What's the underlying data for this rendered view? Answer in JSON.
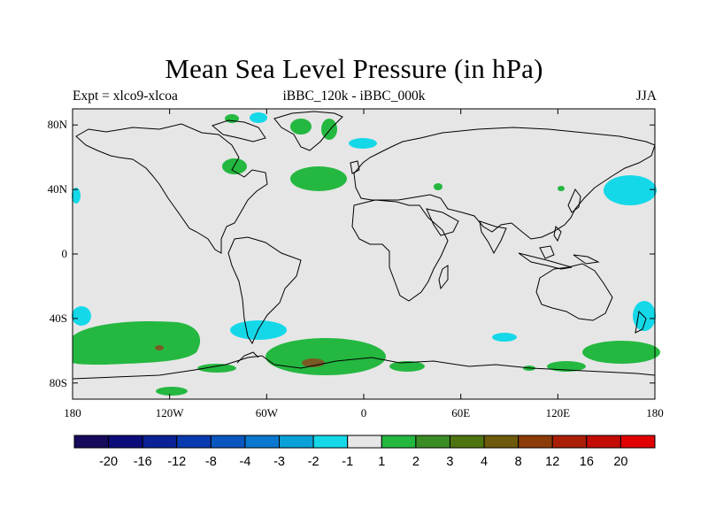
{
  "title": "Mean Sea Level Pressure (in hPa)",
  "expt_label": "Expt = xlco9-xlcoa",
  "diff_label": "iBBC_120k - iBBC_000k",
  "season_label": "JJA",
  "lat_ticks": [
    "80N",
    "40N",
    "0",
    "40S",
    "80S"
  ],
  "lon_ticks": [
    "180",
    "120W",
    "60W",
    "0",
    "60E",
    "120E",
    "180"
  ],
  "colorbar": {
    "labels": [
      "-20",
      "-16",
      "-12",
      "-8",
      "-4",
      "-3",
      "-2",
      "-1",
      "1",
      "2",
      "3",
      "4",
      "8",
      "12",
      "16",
      "20"
    ],
    "colors": [
      "#150a5c",
      "#0c0d7a",
      "#0a2296",
      "#0a3ab0",
      "#0a56c0",
      "#0a78cf",
      "#0aa0d8",
      "#14d8e8",
      "#e6e6e6",
      "#24b840",
      "#3a8c24",
      "#4e7410",
      "#6e5a0c",
      "#8c3c08",
      "#aa1e06",
      "#c40c06",
      "#e00000"
    ]
  },
  "colors": {
    "ocean": "#e6e6e6",
    "neg_small": "#14d8e8",
    "pos_small": "#24b840",
    "pos_mid": "#7a5a24"
  }
}
